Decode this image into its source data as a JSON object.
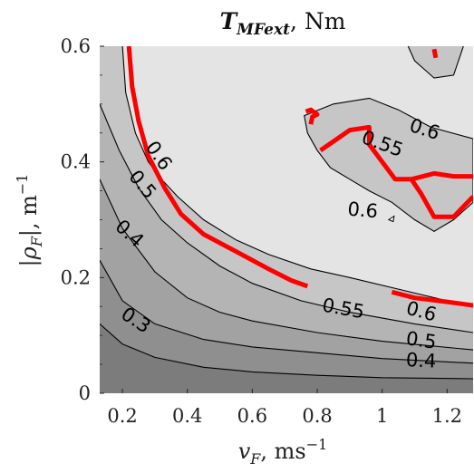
{
  "chart_data": {
    "type": "contour",
    "title_main": "T",
    "title_sub": "MFext",
    "title_unit": ", Nm",
    "xlabel_var": "v",
    "xlabel_sub": "F",
    "xlabel_unit": ", ms",
    "xlabel_exp": "−1",
    "ylabel_var": "|ρ",
    "ylabel_sub": "F",
    "ylabel_close": "|",
    "ylabel_unit": ", m",
    "ylabel_exp": "−1",
    "xlim": [
      0.13,
      1.28
    ],
    "ylim": [
      0,
      0.6
    ],
    "xticks": [
      0.2,
      0.4,
      0.6,
      0.8,
      1.0,
      1.2
    ],
    "xtick_labels": [
      "0.2",
      "0.4",
      "0.6",
      "0.8",
      "1",
      "1.2"
    ],
    "yticks": [
      0,
      0.2,
      0.4,
      0.6
    ],
    "ytick_labels": [
      "0",
      "0.2",
      "0.4",
      "0.6"
    ],
    "grid": false,
    "fill_colors": [
      "#7c7c7c",
      "#8f8f8f",
      "#a2a2a2",
      "#b4b4b4",
      "#c6c6c6",
      "#e4e4e4"
    ],
    "highlight_color": "#ff0000",
    "contours": [
      {
        "level": 0.2,
        "points": [
          [
            0.13,
            0.12
          ],
          [
            0.2,
            0.085
          ],
          [
            0.3,
            0.062
          ],
          [
            0.45,
            0.045
          ],
          [
            0.6,
            0.037
          ],
          [
            0.8,
            0.031
          ],
          [
            1.0,
            0.027
          ],
          [
            1.28,
            0.025
          ]
        ]
      },
      {
        "level": 0.3,
        "points": [
          [
            0.13,
            0.23
          ],
          [
            0.2,
            0.16
          ],
          [
            0.3,
            0.12
          ],
          [
            0.45,
            0.093
          ],
          [
            0.6,
            0.08
          ],
          [
            0.8,
            0.07
          ],
          [
            1.0,
            0.06
          ],
          [
            1.28,
            0.052
          ]
        ]
      },
      {
        "level": 0.4,
        "points": [
          [
            0.13,
            0.37
          ],
          [
            0.2,
            0.285
          ],
          [
            0.3,
            0.21
          ],
          [
            0.4,
            0.165
          ],
          [
            0.5,
            0.14
          ],
          [
            0.6,
            0.125
          ],
          [
            0.8,
            0.105
          ],
          [
            1.0,
            0.09
          ],
          [
            1.28,
            0.075
          ]
        ]
      },
      {
        "level": 0.5,
        "points": [
          [
            0.13,
            0.5
          ],
          [
            0.19,
            0.42
          ],
          [
            0.25,
            0.355
          ],
          [
            0.32,
            0.3
          ],
          [
            0.4,
            0.26
          ],
          [
            0.5,
            0.22
          ],
          [
            0.6,
            0.19
          ],
          [
            0.75,
            0.16
          ],
          [
            0.9,
            0.14
          ],
          [
            1.1,
            0.12
          ],
          [
            1.28,
            0.105
          ]
        ]
      }
    ],
    "contour_06_outer": [
      [
        0.2,
        0.6
      ],
      [
        0.21,
        0.52
      ],
      [
        0.24,
        0.45
      ],
      [
        0.28,
        0.4
      ],
      [
        0.32,
        0.37
      ],
      [
        0.37,
        0.34
      ],
      [
        0.45,
        0.3
      ],
      [
        0.55,
        0.265
      ],
      [
        0.65,
        0.24
      ],
      [
        0.78,
        0.215
      ],
      [
        0.9,
        0.2
      ],
      [
        1.05,
        0.18
      ],
      [
        1.2,
        0.16
      ],
      [
        1.28,
        0.152
      ]
    ],
    "contour_06_island": [
      [
        0.76,
        0.48
      ],
      [
        0.85,
        0.5
      ],
      [
        0.96,
        0.51
      ],
      [
        1.05,
        0.49
      ],
      [
        1.15,
        0.46
      ],
      [
        1.28,
        0.44
      ],
      [
        1.28,
        0.33
      ],
      [
        1.22,
        0.3
      ],
      [
        1.16,
        0.28
      ],
      [
        1.1,
        0.3
      ],
      [
        1.03,
        0.33
      ],
      [
        0.96,
        0.35
      ],
      [
        0.9,
        0.37
      ],
      [
        0.84,
        0.39
      ],
      [
        0.8,
        0.42
      ],
      [
        0.77,
        0.45
      ]
    ],
    "contour_06_top": [
      [
        1.08,
        0.6
      ],
      [
        1.1,
        0.575
      ],
      [
        1.16,
        0.545
      ],
      [
        1.22,
        0.55
      ],
      [
        1.25,
        0.6
      ]
    ],
    "red_main": [
      [
        0.22,
        0.6
      ],
      [
        0.23,
        0.53
      ],
      [
        0.25,
        0.47
      ],
      [
        0.28,
        0.41
      ],
      [
        0.33,
        0.355
      ],
      [
        0.38,
        0.31
      ],
      [
        0.45,
        0.275
      ],
      [
        0.55,
        0.245
      ],
      [
        0.65,
        0.215
      ],
      [
        0.72,
        0.195
      ],
      [
        0.77,
        0.185
      ]
    ],
    "red_lower": [
      [
        1.03,
        0.175
      ],
      [
        1.1,
        0.165
      ],
      [
        1.2,
        0.158
      ],
      [
        1.28,
        0.152
      ]
    ],
    "red_island": [
      [
        0.81,
        0.42
      ],
      [
        0.9,
        0.455
      ],
      [
        0.96,
        0.46
      ],
      [
        0.96,
        0.43
      ],
      [
        1.04,
        0.37
      ],
      [
        1.09,
        0.37
      ],
      [
        1.12,
        0.345
      ],
      [
        1.16,
        0.305
      ],
      [
        1.22,
        0.305
      ],
      [
        1.28,
        0.34
      ]
    ],
    "red_island_branch": [
      [
        1.09,
        0.37
      ],
      [
        1.16,
        0.38
      ],
      [
        1.22,
        0.375
      ],
      [
        1.28,
        0.375
      ]
    ],
    "red_small_loop": [
      [
        0.765,
        0.487
      ],
      [
        0.78,
        0.49
      ],
      [
        0.8,
        0.482
      ],
      [
        0.785,
        0.478
      ],
      [
        0.78,
        0.465
      ]
    ],
    "red_top_tick": [
      [
        1.16,
        0.595
      ],
      [
        1.165,
        0.58
      ]
    ],
    "contour_labels": [
      {
        "text": "0.6",
        "x": 0.31,
        "y": 0.41,
        "angle": 55
      },
      {
        "text": "0.5",
        "x": 0.26,
        "y": 0.36,
        "angle": 50
      },
      {
        "text": "0.4",
        "x": 0.22,
        "y": 0.275,
        "angle": 42
      },
      {
        "text": "0.3",
        "x": 0.24,
        "y": 0.125,
        "angle": 33
      },
      {
        "text": "0.55",
        "x": 0.88,
        "y": 0.145,
        "angle": 10
      },
      {
        "text": "0.6",
        "x": 1.12,
        "y": 0.14,
        "angle": 15
      },
      {
        "text": "0.5",
        "x": 1.12,
        "y": 0.09,
        "angle": 8
      },
      {
        "text": "0.4",
        "x": 1.12,
        "y": 0.055,
        "angle": 3
      },
      {
        "text": "0.55",
        "x": 1.0,
        "y": 0.43,
        "angle": 20
      },
      {
        "text": "0.6",
        "x": 1.13,
        "y": 0.455,
        "angle": 18
      },
      {
        "text": "0.6",
        "x": 0.94,
        "y": 0.315,
        "angle": 5
      }
    ]
  }
}
